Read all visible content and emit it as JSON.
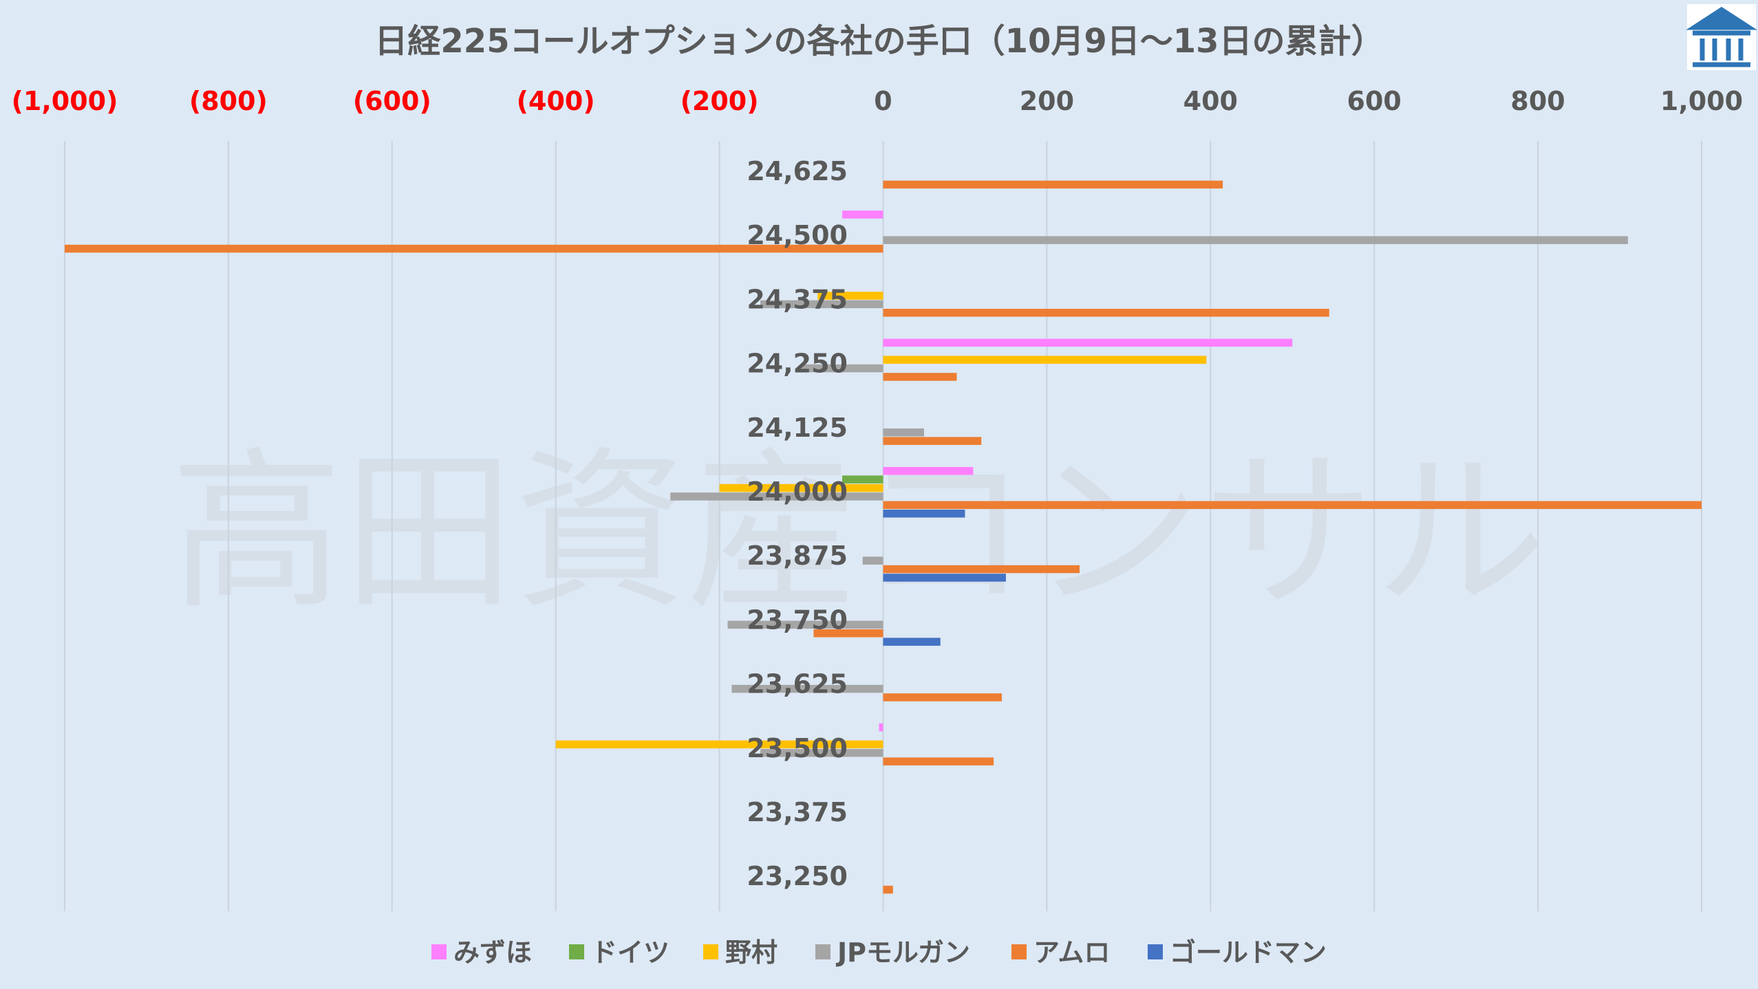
{
  "title": "日経225コールオプションの各社の手口（10月9日～13日の累計）",
  "watermark": "高田資産コンサル",
  "logo_icon": "building-logo-icon",
  "colors": {
    "negative_tick": "#ff0000",
    "positive_tick": "#595959",
    "grid": "#c9d3dd",
    "logo_bg": "#2e75b6"
  },
  "chart_data": {
    "type": "bar",
    "orientation": "horizontal",
    "title": "日経225コールオプションの各社の手口（10月9日～13日の累計）",
    "xlim": [
      -1000,
      1000
    ],
    "xticks": [
      -1000,
      -800,
      -600,
      -400,
      -200,
      0,
      200,
      400,
      600,
      800,
      1000
    ],
    "xtick_labels": [
      "(1,000)",
      "(800)",
      "(600)",
      "(400)",
      "(200)",
      "0",
      "200",
      "400",
      "600",
      "800",
      "1,000"
    ],
    "axis_position": "top",
    "grid": true,
    "legend_position": "bottom",
    "categories": [
      "24,625",
      "24,500",
      "24,375",
      "24,250",
      "24,125",
      "24,000",
      "23,875",
      "23,750",
      "23,625",
      "23,500",
      "23,375",
      "23,250"
    ],
    "series": [
      {
        "name": "みずほ",
        "color": "#ff80ff",
        "values": [
          0,
          -50,
          0,
          500,
          0,
          110,
          0,
          0,
          0,
          -5,
          0,
          0
        ]
      },
      {
        "name": "ドイツ",
        "color": "#70ad47",
        "values": [
          0,
          0,
          0,
          0,
          0,
          -50,
          0,
          0,
          0,
          0,
          0,
          0
        ]
      },
      {
        "name": "野村",
        "color": "#ffc000",
        "values": [
          0,
          0,
          -80,
          395,
          0,
          -200,
          0,
          0,
          0,
          -400,
          0,
          0
        ]
      },
      {
        "name": "JPモルガン",
        "color": "#a5a5a5",
        "values": [
          0,
          910,
          -150,
          -100,
          50,
          -260,
          -25,
          -190,
          -185,
          -150,
          0,
          0
        ]
      },
      {
        "name": "アムロ",
        "color": "#ed7d31",
        "values": [
          415,
          -1000,
          545,
          90,
          120,
          1000,
          240,
          -85,
          145,
          135,
          0,
          12
        ]
      },
      {
        "name": "ゴールドマン",
        "color": "#4472c4",
        "values": [
          0,
          0,
          0,
          0,
          0,
          100,
          150,
          70,
          0,
          0,
          0,
          0
        ]
      }
    ]
  }
}
